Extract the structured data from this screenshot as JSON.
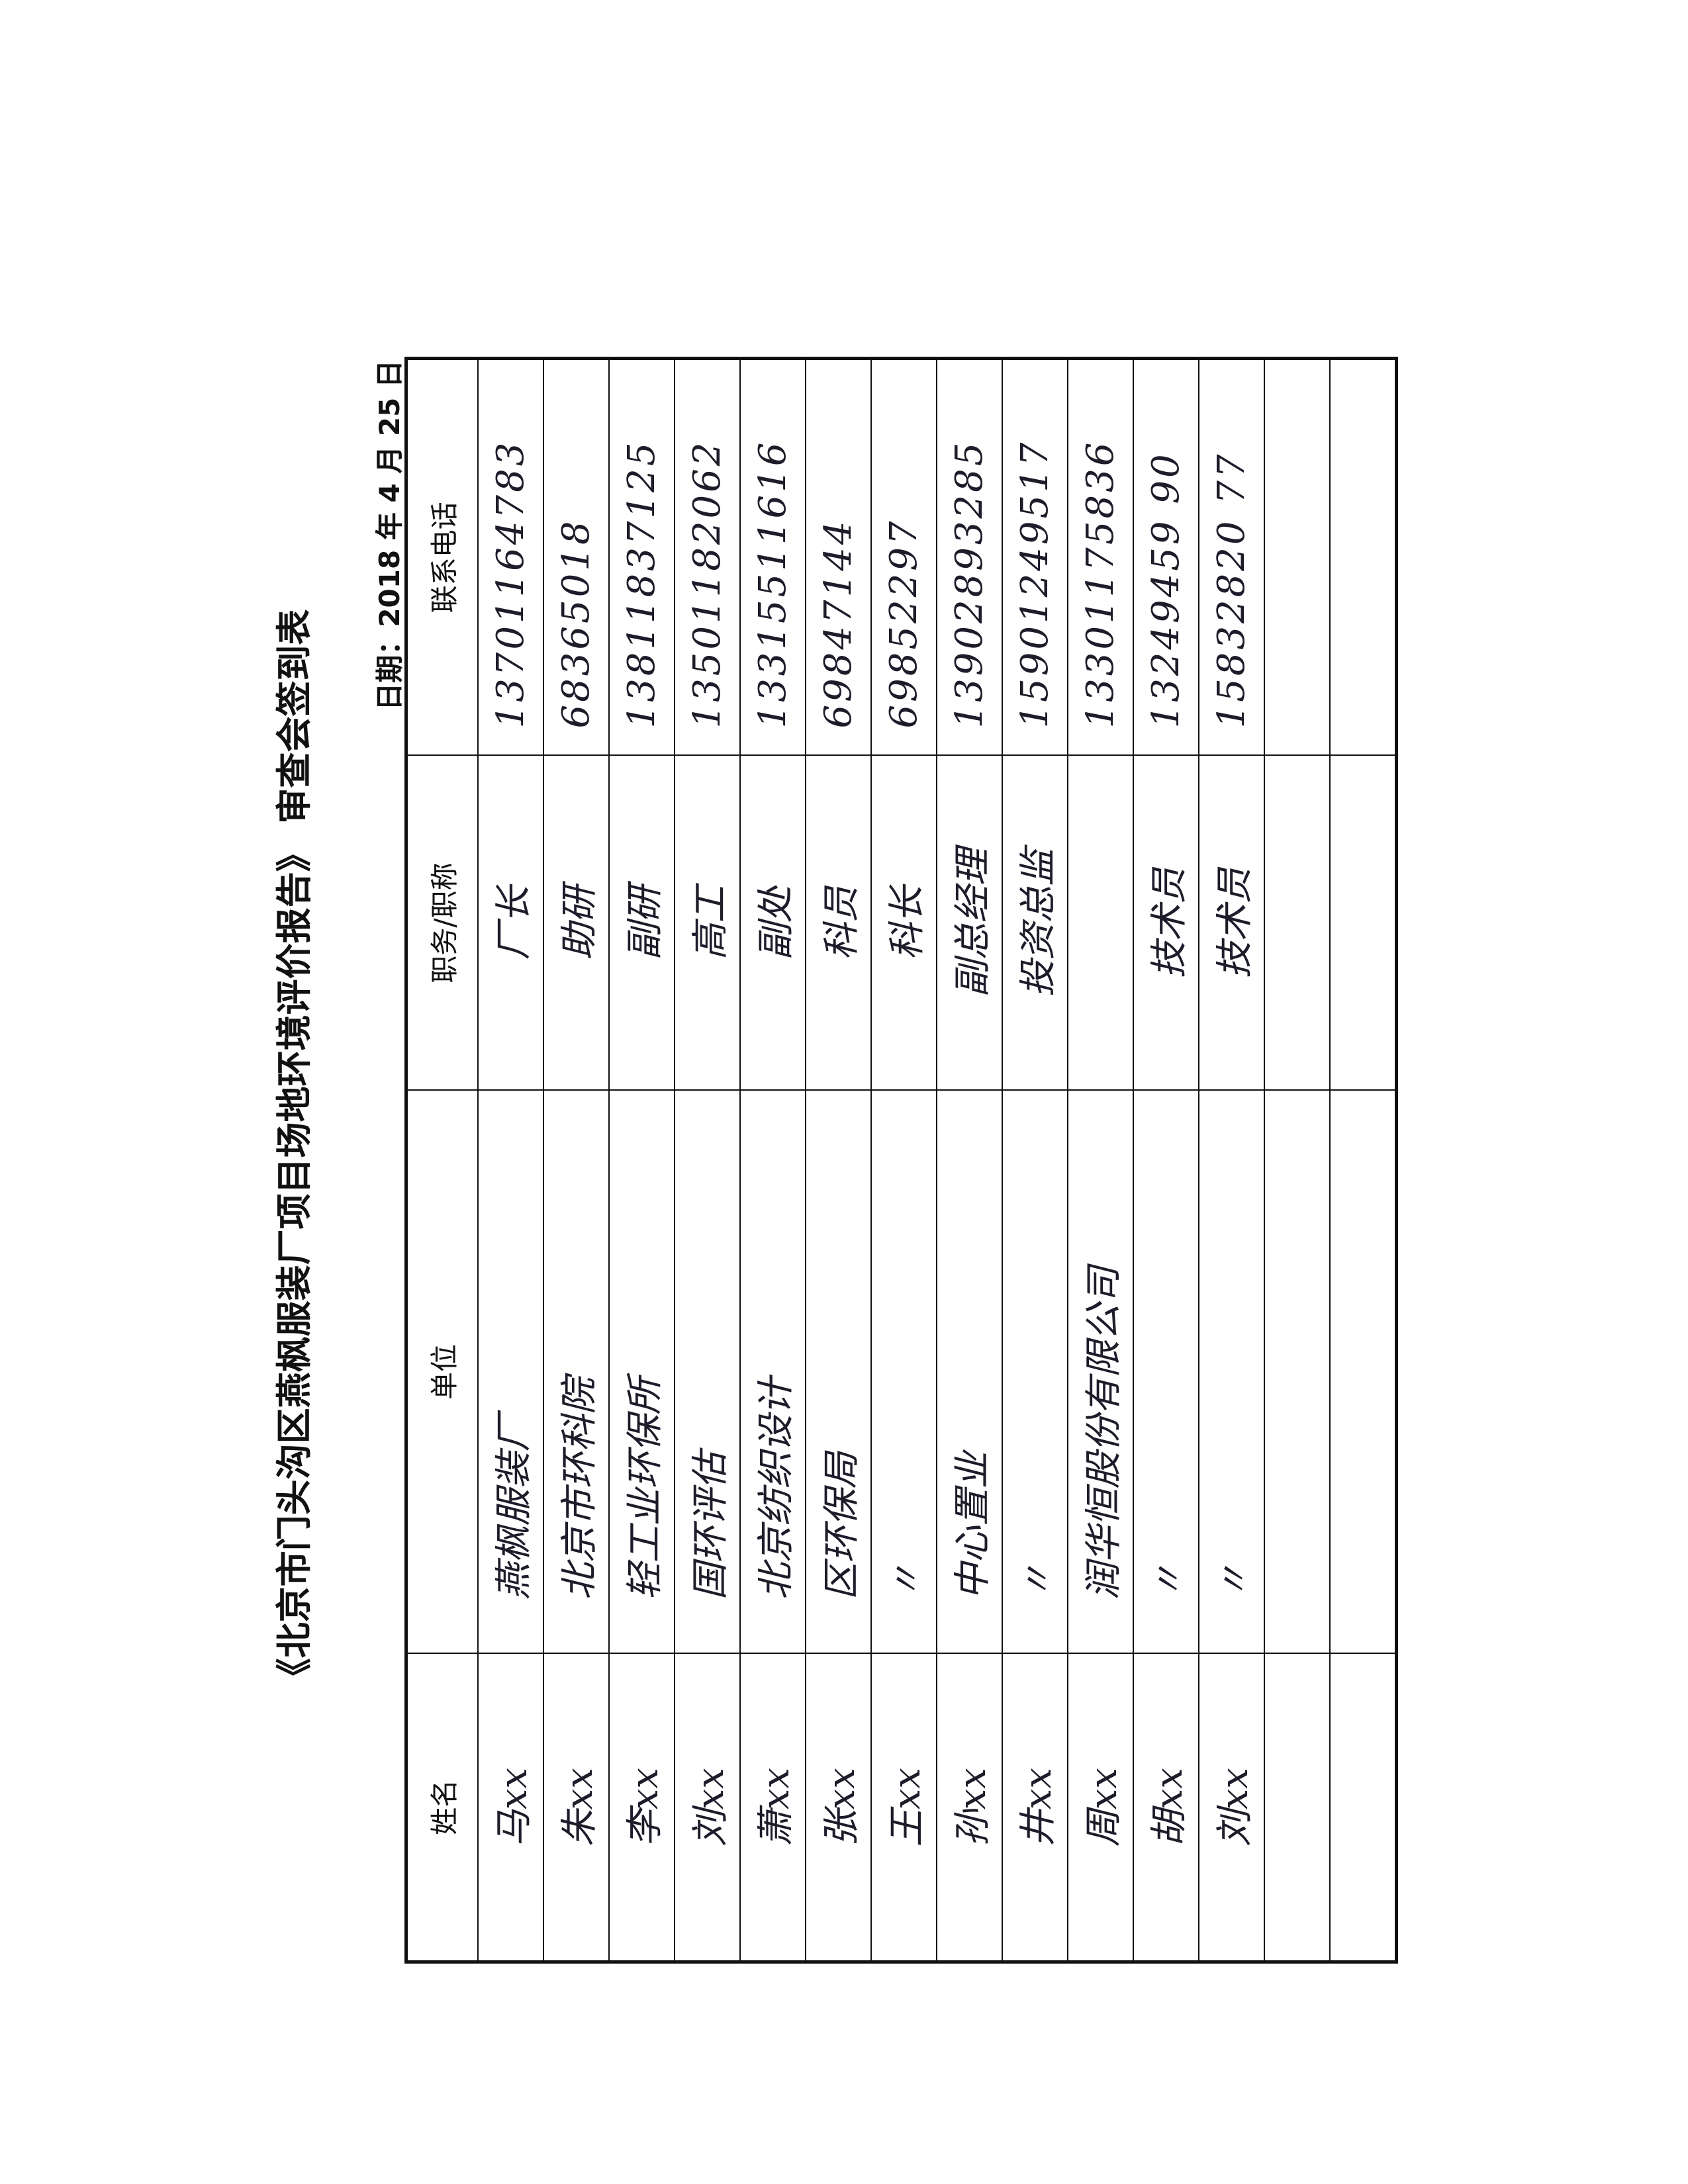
{
  "document": {
    "title": "《北京市门头沟区燕枫服装厂项目场地环境评价报告》 审查会签到表",
    "date": "日期：2018 年 4 月 25 日"
  },
  "table": {
    "headers": [
      "姓名",
      "单位",
      "职务/职称",
      "联系电话"
    ],
    "rows": [
      {
        "name": "马xx",
        "unit": "燕枫服装厂",
        "position": "厂长",
        "phone": "13701164783"
      },
      {
        "name": "朱xx",
        "unit": "北京市环科院",
        "position": "助研",
        "phone": "68365018"
      },
      {
        "name": "李xx",
        "unit": "轻工业环保所",
        "position": "副研",
        "phone": "13811837125"
      },
      {
        "name": "刘xx",
        "unit": "国环评估",
        "position": "高工",
        "phone": "13501182062"
      },
      {
        "name": "萧xx",
        "unit": "北京纺织设计",
        "position": "副处",
        "phone": "13315511616"
      },
      {
        "name": "张xx",
        "unit": "区环保局",
        "position": "科员",
        "phone": "69847144"
      },
      {
        "name": "王xx",
        "unit": "〃",
        "position": "科长",
        "phone": "69852297"
      },
      {
        "name": "孙xx",
        "unit": "中心置业",
        "position": "副总经理",
        "phone": "13902893285"
      },
      {
        "name": "井xx",
        "unit": "〃",
        "position": "投资总监",
        "phone": "15901249517"
      },
      {
        "name": "周xx",
        "unit": "润华恒股份有限公司",
        "position": "",
        "phone": "13301175836"
      },
      {
        "name": "胡xx",
        "unit": "〃",
        "position": "技术员",
        "phone": "13249459 90"
      },
      {
        "name": "刘xx",
        "unit": "〃",
        "position": "技术员",
        "phone": "15832820 77"
      },
      {
        "name": "",
        "unit": "",
        "position": "",
        "phone": ""
      },
      {
        "name": "",
        "unit": "",
        "position": "",
        "phone": ""
      }
    ]
  }
}
